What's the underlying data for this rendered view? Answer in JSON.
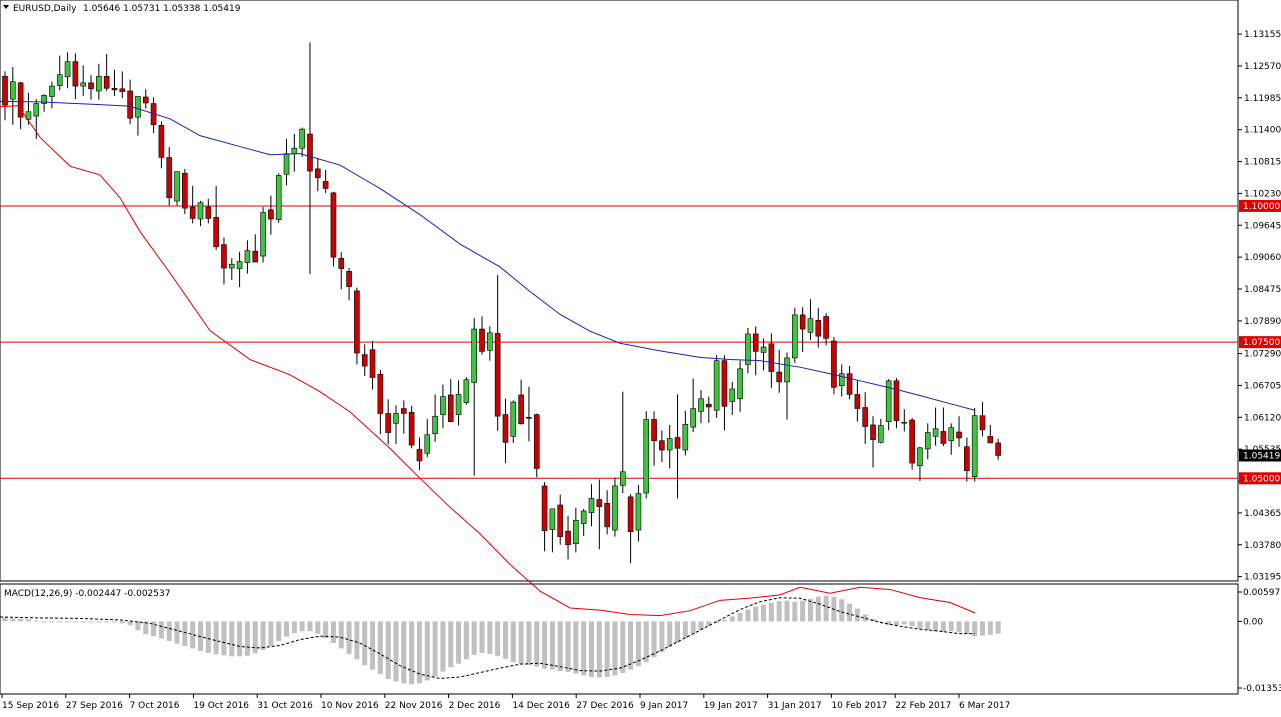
{
  "header": {
    "symbol": "EURUSD,Daily",
    "ohlc": "1.05646 1.05731 1.05338 1.05419"
  },
  "macd_header": "MACD(12,26,9) -0.002447 -0.002537",
  "colors": {
    "bull": "#3ec43e",
    "bear": "#cc0000",
    "ma_fast": "#e00000",
    "ma_slow": "#1e1eb4",
    "hline": "#e00000",
    "macd_hist": "#c0c0c0",
    "macd_signal": "#000000",
    "current_price_box": "#000000"
  },
  "chart_data": {
    "type": "candlestick",
    "price_ticks": [
      "1.13155",
      "1.12570",
      "1.11985",
      "1.11400",
      "1.10815",
      "1.10230",
      "1.09645",
      "1.09060",
      "1.08475",
      "1.07890",
      "1.07290",
      "1.06705",
      "1.06120",
      "1.05535",
      "1.04950",
      "1.04365",
      "1.03780",
      "1.03195"
    ],
    "price_range": [
      1.0317,
      1.1345
    ],
    "date_labels": [
      "15 Sep 2016",
      "27 Sep 2016",
      "7 Oct 2016",
      "19 Oct 2016",
      "31 Oct 2016",
      "10 Nov 2016",
      "22 Nov 2016",
      "2 Dec 2016",
      "14 Dec 2016",
      "27 Dec 2016",
      "9 Jan 2017",
      "19 Jan 2017",
      "31 Jan 2017",
      "10 Feb 2017",
      "22 Feb 2017",
      "6 Mar 2017"
    ],
    "horizontal_lines": [
      {
        "price": 1.1,
        "label": "1.10000"
      },
      {
        "price": 1.075,
        "label": "1.07500"
      },
      {
        "price": 1.05,
        "label": "1.05000"
      }
    ],
    "current_price": {
      "price": 1.05419,
      "label": "1.05419"
    },
    "candles": [
      [
        1.1238,
        1.1247,
        1.1157,
        1.1185
      ],
      [
        1.1196,
        1.1255,
        1.1149,
        1.1228
      ],
      [
        1.1226,
        1.1228,
        1.1141,
        1.1163
      ],
      [
        1.1159,
        1.1208,
        1.1149,
        1.1173
      ],
      [
        1.1165,
        1.1196,
        1.1123,
        1.1188
      ],
      [
        1.1188,
        1.1205,
        1.1173,
        1.1203
      ],
      [
        1.1201,
        1.1228,
        1.1179,
        1.122
      ],
      [
        1.1221,
        1.1276,
        1.1212,
        1.1241
      ],
      [
        1.1237,
        1.1282,
        1.1216,
        1.1265
      ],
      [
        1.1265,
        1.128,
        1.1196,
        1.122
      ],
      [
        1.122,
        1.1258,
        1.1202,
        1.1226
      ],
      [
        1.1226,
        1.124,
        1.1195,
        1.1215
      ],
      [
        1.1211,
        1.1261,
        1.1195,
        1.1238
      ],
      [
        1.1238,
        1.1279,
        1.1211,
        1.1216
      ],
      [
        1.1216,
        1.125,
        1.1202,
        1.1213
      ],
      [
        1.1215,
        1.1247,
        1.1198,
        1.121
      ],
      [
        1.1211,
        1.1232,
        1.115,
        1.1161
      ],
      [
        1.1163,
        1.1201,
        1.1129,
        1.1201
      ],
      [
        1.12,
        1.1214,
        1.1179,
        1.1189
      ],
      [
        1.1188,
        1.1199,
        1.1134,
        1.1149
      ],
      [
        1.1148,
        1.1155,
        1.1069,
        1.1089
      ],
      [
        1.1089,
        1.1108,
        1.1001,
        1.1015
      ],
      [
        1.1009,
        1.1063,
        1.1001,
        1.1063
      ],
      [
        1.106,
        1.1068,
        1.0985,
        1.0996
      ],
      [
        1.0998,
        1.1037,
        1.0968,
        1.0977
      ],
      [
        1.0976,
        1.1009,
        1.0963,
        1.1006
      ],
      [
        1.0998,
        1.1013,
        1.0968,
        1.0977
      ],
      [
        1.0979,
        1.1037,
        1.0919,
        1.0925
      ],
      [
        1.0929,
        1.0942,
        1.0856,
        1.0886
      ],
      [
        1.0886,
        1.0904,
        1.0864,
        1.0893
      ],
      [
        1.0885,
        1.0916,
        1.0851,
        1.0898
      ],
      [
        1.0896,
        1.0937,
        1.0876,
        1.0918
      ],
      [
        1.0917,
        1.0948,
        1.0897,
        1.0897
      ],
      [
        1.0908,
        1.0998,
        1.0896,
        1.0988
      ],
      [
        1.0993,
        1.1019,
        1.0947,
        1.0976
      ],
      [
        1.0975,
        1.106,
        1.0969,
        1.1056
      ],
      [
        1.1058,
        1.1123,
        1.1038,
        1.1096
      ],
      [
        1.1096,
        1.1132,
        1.1063,
        1.1106
      ],
      [
        1.1106,
        1.1144,
        1.109,
        1.1141
      ],
      [
        1.1132,
        1.13,
        1.0875,
        1.1064
      ],
      [
        1.1068,
        1.1088,
        1.1027,
        1.1052
      ],
      [
        1.1045,
        1.1066,
        1.1024,
        1.1032
      ],
      [
        1.1024,
        1.1026,
        1.0889,
        1.0906
      ],
      [
        1.0904,
        1.0915,
        1.0847,
        1.0885
      ],
      [
        1.088,
        1.0886,
        1.0827,
        1.0852
      ],
      [
        1.0844,
        1.085,
        1.0709,
        1.073
      ],
      [
        1.0727,
        1.0746,
        1.0688,
        1.0706
      ],
      [
        1.0736,
        1.0752,
        1.0663,
        1.0685
      ],
      [
        1.0691,
        1.0699,
        1.0581,
        1.0619
      ],
      [
        1.0619,
        1.0645,
        1.0562,
        1.0584
      ],
      [
        1.0601,
        1.0634,
        1.0563,
        1.0619
      ],
      [
        1.0628,
        1.0643,
        1.0582,
        1.0619
      ],
      [
        1.0621,
        1.0633,
        1.0555,
        1.0561
      ],
      [
        1.0553,
        1.0575,
        1.0515,
        1.0532
      ],
      [
        1.0546,
        1.0609,
        1.0539,
        1.058
      ],
      [
        1.0582,
        1.0654,
        1.0567,
        1.0614
      ],
      [
        1.0617,
        1.0672,
        1.0592,
        1.065
      ],
      [
        1.0653,
        1.0682,
        1.0611,
        1.0604
      ],
      [
        1.0617,
        1.068,
        1.0597,
        1.0654
      ],
      [
        1.0639,
        1.0686,
        1.0635,
        1.0681
      ],
      [
        1.0676,
        1.0794,
        1.0505,
        1.0774
      ],
      [
        1.0774,
        1.0797,
        1.0727,
        1.0733
      ],
      [
        1.0735,
        1.0779,
        1.0716,
        1.0767
      ],
      [
        1.0766,
        1.0873,
        1.0587,
        1.0614
      ],
      [
        1.0617,
        1.0646,
        1.0528,
        1.0566
      ],
      [
        1.0577,
        1.0643,
        1.0565,
        1.064
      ],
      [
        1.0653,
        1.0681,
        1.0599,
        1.06
      ],
      [
        1.0612,
        1.0668,
        1.0568,
        1.0611
      ],
      [
        1.0617,
        1.0619,
        1.0502,
        1.0518
      ],
      [
        1.0486,
        1.0493,
        1.0366,
        1.0404
      ],
      [
        1.0406,
        1.0442,
        1.0364,
        1.0444
      ],
      [
        1.0451,
        1.047,
        1.0378,
        1.0393
      ],
      [
        1.0403,
        1.0431,
        1.0351,
        1.0378
      ],
      [
        1.038,
        1.0446,
        1.0364,
        1.0423
      ],
      [
        1.0417,
        1.0444,
        1.0394,
        1.044
      ],
      [
        1.0437,
        1.0489,
        1.0412,
        1.0463
      ],
      [
        1.0461,
        1.0498,
        1.037,
        1.0448
      ],
      [
        1.0454,
        1.0478,
        1.0397,
        1.0411
      ],
      [
        1.0405,
        1.0501,
        1.0393,
        1.0486
      ],
      [
        1.0487,
        1.0659,
        1.0473,
        1.0512
      ],
      [
        1.0466,
        1.0471,
        1.0344,
        1.0402
      ],
      [
        1.0405,
        1.0488,
        1.0384,
        1.0472
      ],
      [
        1.0473,
        1.0623,
        1.0463,
        1.0608
      ],
      [
        1.0608,
        1.0623,
        1.0523,
        1.0569
      ],
      [
        1.0569,
        1.0588,
        1.053,
        1.0552
      ],
      [
        1.0552,
        1.0598,
        1.0518,
        1.0573
      ],
      [
        1.0575,
        1.0654,
        1.0463,
        1.0555
      ],
      [
        1.0552,
        1.0624,
        1.0542,
        1.0599
      ],
      [
        1.0594,
        1.0683,
        1.0585,
        1.0628
      ],
      [
        1.0623,
        1.0662,
        1.0601,
        1.0646
      ],
      [
        1.0636,
        1.065,
        1.0602,
        1.0631
      ],
      [
        1.0625,
        1.0726,
        1.0611,
        1.0716
      ],
      [
        1.0716,
        1.0726,
        1.0588,
        1.0632
      ],
      [
        1.0641,
        1.0677,
        1.0616,
        1.0664
      ],
      [
        1.0646,
        1.0716,
        1.0622,
        1.0701
      ],
      [
        1.0709,
        1.0776,
        1.0693,
        1.0765
      ],
      [
        1.0765,
        1.0779,
        1.0689,
        1.0733
      ],
      [
        1.0731,
        1.0757,
        1.0698,
        1.0741
      ],
      [
        1.0747,
        1.0766,
        1.0666,
        1.0696
      ],
      [
        1.0695,
        1.0736,
        1.0657,
        1.0677
      ],
      [
        1.0677,
        1.0731,
        1.0608,
        1.0721
      ],
      [
        1.0721,
        1.0813,
        1.0712,
        1.08
      ],
      [
        1.08,
        1.0814,
        1.0732,
        1.0774
      ],
      [
        1.0768,
        1.0829,
        1.0754,
        1.0793
      ],
      [
        1.079,
        1.0813,
        1.074,
        1.0761
      ],
      [
        1.0797,
        1.0803,
        1.0744,
        1.0757
      ],
      [
        1.0752,
        1.0759,
        1.0654,
        1.0667
      ],
      [
        1.067,
        1.0709,
        1.065,
        1.0692
      ],
      [
        1.0692,
        1.0706,
        1.0645,
        1.0654
      ],
      [
        1.0654,
        1.068,
        1.0604,
        1.0628
      ],
      [
        1.063,
        1.0658,
        1.0563,
        1.0595
      ],
      [
        1.0598,
        1.0614,
        1.052,
        1.0571
      ],
      [
        1.0566,
        1.0609,
        1.0564,
        1.0597
      ],
      [
        1.0604,
        1.0682,
        1.0588,
        1.0679
      ],
      [
        1.0679,
        1.0684,
        1.0592,
        1.0606
      ],
      [
        1.0603,
        1.0627,
        1.0586,
        1.0603
      ],
      [
        1.0607,
        1.0611,
        1.0516,
        1.0528
      ],
      [
        1.0523,
        1.0558,
        1.0495,
        1.0556
      ],
      [
        1.0554,
        1.0601,
        1.0535,
        1.0584
      ],
      [
        1.0577,
        1.063,
        1.056,
        1.0591
      ],
      [
        1.0586,
        1.063,
        1.0559,
        1.0564
      ],
      [
        1.0569,
        1.0601,
        1.0543,
        1.0593
      ],
      [
        1.0585,
        1.0614,
        1.0558,
        1.0574
      ],
      [
        1.0558,
        1.0575,
        1.0494,
        1.0514
      ],
      [
        1.0503,
        1.0629,
        1.0494,
        1.0615
      ],
      [
        1.0615,
        1.064,
        1.0577,
        1.0589
      ],
      [
        1.0577,
        1.0598,
        1.0564,
        1.0565
      ],
      [
        1.0565,
        1.0573,
        1.0534,
        1.0542
      ]
    ],
    "ma_fast": [
      [
        0,
        1.1182
      ],
      [
        18,
        1.1184
      ],
      [
        40,
        1.1126
      ],
      [
        70,
        1.1073
      ],
      [
        100,
        1.1057
      ],
      [
        120,
        1.1015
      ],
      [
        140,
        1.0953
      ],
      [
        170,
        1.0877
      ],
      [
        210,
        1.0771
      ],
      [
        250,
        1.0718
      ],
      [
        290,
        1.069
      ],
      [
        320,
        1.0659
      ],
      [
        350,
        1.0622
      ],
      [
        390,
        1.0555
      ],
      [
        420,
        1.05
      ],
      [
        450,
        1.0447
      ],
      [
        480,
        1.0398
      ],
      [
        510,
        1.0342
      ],
      [
        540,
        1.0293
      ],
      [
        570,
        1.0262
      ],
      [
        600,
        1.0258
      ],
      [
        630,
        1.025
      ],
      [
        660,
        1.0248
      ],
      [
        690,
        1.0257
      ],
      [
        720,
        1.0276
      ],
      [
        750,
        1.028
      ],
      [
        780,
        1.0286
      ],
      [
        800,
        1.03
      ],
      [
        830,
        1.0289
      ],
      [
        860,
        1.03
      ],
      [
        890,
        1.0296
      ],
      [
        920,
        1.0281
      ],
      [
        950,
        1.0272
      ],
      [
        975,
        1.0253
      ]
    ],
    "ma_slow": [
      [
        0,
        1.1192
      ],
      [
        40,
        1.1191
      ],
      [
        100,
        1.1186
      ],
      [
        130,
        1.1183
      ],
      [
        170,
        1.116
      ],
      [
        200,
        1.1129
      ],
      [
        240,
        1.1109
      ],
      [
        270,
        1.1094
      ],
      [
        300,
        1.1096
      ],
      [
        340,
        1.1075
      ],
      [
        380,
        1.1032
      ],
      [
        420,
        1.0984
      ],
      [
        460,
        1.093
      ],
      [
        500,
        1.0888
      ],
      [
        530,
        1.0843
      ],
      [
        560,
        1.0801
      ],
      [
        590,
        1.077
      ],
      [
        620,
        1.0748
      ],
      [
        660,
        1.0734
      ],
      [
        700,
        1.0722
      ],
      [
        730,
        1.0718
      ],
      [
        760,
        1.0716
      ],
      [
        800,
        1.0704
      ],
      [
        830,
        1.0692
      ],
      [
        860,
        1.0679
      ],
      [
        890,
        1.0666
      ],
      [
        920,
        1.0652
      ],
      [
        950,
        1.0637
      ],
      [
        975,
        1.0625
      ]
    ],
    "macd": {
      "ticks": [
        "0.005971",
        "0.00",
        "-0.013539"
      ],
      "range": [
        -0.013539,
        0.005971
      ],
      "histogram": [
        0.0008,
        0.0006,
        0.0005,
        0.0004,
        0.0002,
        -0.0001,
        -0.0002,
        -0.0002,
        0.0,
        0.0,
        0.0,
        0.0,
        0.0,
        -0.0001,
        -0.0002,
        -0.0004,
        -0.0008,
        -0.0018,
        -0.0026,
        -0.003,
        -0.0035,
        -0.004,
        -0.0045,
        -0.005,
        -0.0055,
        -0.006,
        -0.0064,
        -0.0067,
        -0.0069,
        -0.0071,
        -0.0071,
        -0.007,
        -0.0065,
        -0.0058,
        -0.005,
        -0.004,
        -0.0031,
        -0.0024,
        -0.002,
        -0.002,
        -0.0025,
        -0.0034,
        -0.0044,
        -0.0055,
        -0.0066,
        -0.0077,
        -0.0089,
        -0.0098,
        -0.0107,
        -0.0117,
        -0.0122,
        -0.0126,
        -0.0128,
        -0.0126,
        -0.012,
        -0.0112,
        -0.0102,
        -0.0093,
        -0.0086,
        -0.0077,
        -0.0068,
        -0.0064,
        -0.0066,
        -0.007,
        -0.0076,
        -0.0083,
        -0.0087,
        -0.0089,
        -0.0092,
        -0.0096,
        -0.0098,
        -0.0101,
        -0.0103,
        -0.0106,
        -0.011,
        -0.0113,
        -0.0114,
        -0.0113,
        -0.011,
        -0.0105,
        -0.0098,
        -0.0091,
        -0.0083,
        -0.0073,
        -0.0062,
        -0.0052,
        -0.0043,
        -0.0034,
        -0.0025,
        -0.0017,
        -0.0009,
        -0.0003,
        0.0003,
        0.001,
        0.0017,
        0.0024,
        0.003,
        0.0034,
        0.0038,
        0.0041,
        0.0042,
        0.004,
        0.0042,
        0.0046,
        0.005,
        0.0052,
        0.005,
        0.0045,
        0.0036,
        0.0026,
        0.0014,
        0.0005,
        -0.0002,
        -0.0007,
        -0.0008,
        -0.0006,
        -0.001,
        -0.0015,
        -0.0018,
        -0.002,
        -0.0022,
        -0.002,
        -0.0022,
        -0.0025,
        -0.003,
        -0.0029,
        -0.0027,
        -0.0025
      ],
      "signal": [
        [
          0,
          0.0009
        ],
        [
          40,
          0.0007
        ],
        [
          80,
          0.0006
        ],
        [
          120,
          0.0003
        ],
        [
          150,
          -0.0004
        ],
        [
          180,
          -0.002
        ],
        [
          210,
          -0.0036
        ],
        [
          240,
          -0.0051
        ],
        [
          260,
          -0.0054
        ],
        [
          280,
          -0.0049
        ],
        [
          300,
          -0.0037
        ],
        [
          320,
          -0.003
        ],
        [
          340,
          -0.0032
        ],
        [
          360,
          -0.0044
        ],
        [
          380,
          -0.0066
        ],
        [
          400,
          -0.009
        ],
        [
          420,
          -0.0107
        ],
        [
          440,
          -0.0116
        ],
        [
          460,
          -0.0113
        ],
        [
          480,
          -0.0104
        ],
        [
          500,
          -0.0095
        ],
        [
          520,
          -0.0087
        ],
        [
          540,
          -0.0085
        ],
        [
          560,
          -0.0092
        ],
        [
          580,
          -0.01
        ],
        [
          600,
          -0.0101
        ],
        [
          620,
          -0.0095
        ],
        [
          640,
          -0.0079
        ],
        [
          660,
          -0.006
        ],
        [
          680,
          -0.0039
        ],
        [
          700,
          -0.0018
        ],
        [
          720,
          0.0003
        ],
        [
          740,
          0.0024
        ],
        [
          760,
          0.004
        ],
        [
          780,
          0.0048
        ],
        [
          800,
          0.0047
        ],
        [
          820,
          0.0035
        ],
        [
          840,
          0.002
        ],
        [
          860,
          0.0009
        ],
        [
          880,
          -0.0002
        ],
        [
          900,
          -0.001
        ],
        [
          920,
          -0.0016
        ],
        [
          940,
          -0.002
        ],
        [
          960,
          -0.0025
        ],
        [
          975,
          -0.0025
        ]
      ]
    }
  }
}
